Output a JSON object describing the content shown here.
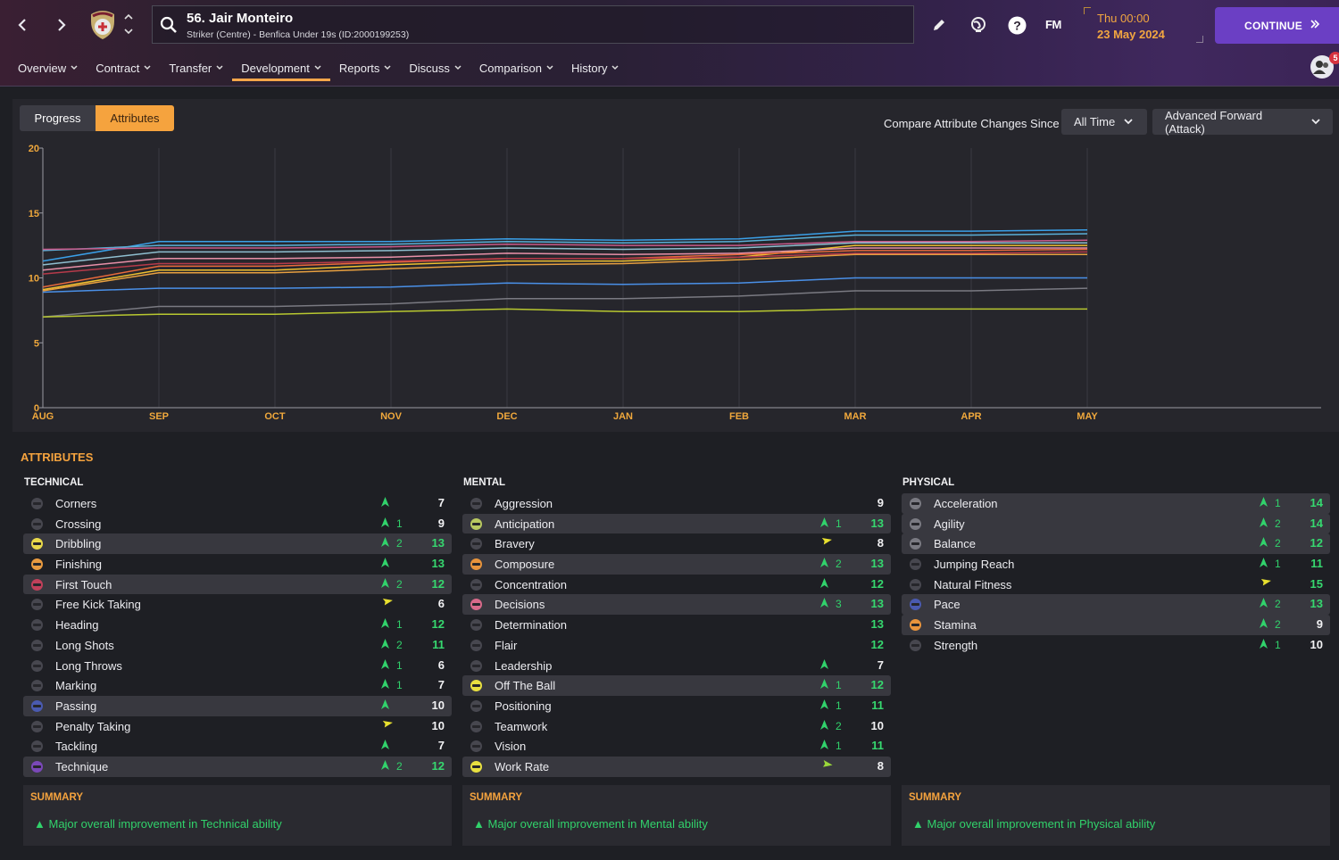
{
  "header": {
    "player_name": "56. Jair Monteiro",
    "player_subtitle": "Striker (Centre) - Benfica Under 19s (ID:2000199253)",
    "time": "Thu 00:00",
    "date": "23 May 2024",
    "continue_label": "CONTINUE",
    "fm_label": "FM",
    "notification_count": "5",
    "icons": [
      "back-icon",
      "forward-icon",
      "club-badge-icon",
      "search-icon",
      "edit-icon",
      "world-icon",
      "help-icon",
      "social-icon"
    ]
  },
  "menu": [
    {
      "label": "Overview"
    },
    {
      "label": "Contract"
    },
    {
      "label": "Transfer"
    },
    {
      "label": "Development",
      "active": true
    },
    {
      "label": "Reports"
    },
    {
      "label": "Discuss"
    },
    {
      "label": "Comparison"
    },
    {
      "label": "History"
    }
  ],
  "tabs": {
    "progress": "Progress",
    "attributes": "Attributes"
  },
  "compare": {
    "label": "Compare Attribute Changes Since",
    "since_value": "All Time",
    "role_value": "Advanced Forward (Attack)"
  },
  "chart_data": {
    "type": "line",
    "x": [
      "AUG",
      "SEP",
      "OCT",
      "NOV",
      "DEC",
      "JAN",
      "FEB",
      "MAR",
      "APR",
      "MAY"
    ],
    "y_ticks": [
      "20",
      "15",
      "10",
      "5",
      "0"
    ],
    "ylim": [
      0,
      20
    ],
    "grid": true,
    "series": [
      {
        "color": "#3aa0e8",
        "values": [
          11.3,
          12.8,
          12.8,
          12.8,
          13.0,
          12.9,
          13.0,
          13.6,
          13.6,
          13.7
        ]
      },
      {
        "color": "#5ab0d8",
        "values": [
          12.1,
          12.5,
          12.5,
          12.6,
          12.8,
          12.7,
          12.8,
          13.3,
          13.3,
          13.4
        ]
      },
      {
        "color": "#c85a8a",
        "values": [
          12.2,
          12.3,
          12.3,
          12.4,
          12.6,
          12.5,
          12.5,
          12.8,
          12.8,
          12.9
        ]
      },
      {
        "color": "#8fbfd0",
        "values": [
          11.0,
          12.0,
          12.0,
          12.1,
          12.3,
          12.2,
          12.3,
          12.7,
          12.7,
          12.7
        ]
      },
      {
        "color": "#f0c030",
        "values": [
          9.1,
          10.6,
          10.6,
          11.0,
          11.3,
          11.3,
          11.6,
          12.5,
          12.5,
          12.5
        ]
      },
      {
        "color": "#e890a8",
        "values": [
          10.6,
          11.5,
          11.5,
          11.6,
          11.9,
          11.8,
          11.9,
          12.3,
          12.3,
          12.3
        ]
      },
      {
        "color": "#e86a3c",
        "values": [
          9.3,
          10.9,
          10.9,
          11.2,
          11.5,
          11.5,
          11.8,
          12.1,
          12.1,
          12.2
        ]
      },
      {
        "color": "#b63a4a",
        "values": [
          10.3,
          11.1,
          11.1,
          11.3,
          11.5,
          11.5,
          11.6,
          11.9,
          11.9,
          12.0
        ]
      },
      {
        "color": "#e8a040",
        "values": [
          9.0,
          10.4,
          10.4,
          10.7,
          11.0,
          11.1,
          11.4,
          11.8,
          11.8,
          11.8
        ]
      },
      {
        "color": "#4a90e8",
        "values": [
          8.9,
          9.2,
          9.2,
          9.3,
          9.6,
          9.5,
          9.6,
          10.0,
          10.0,
          10.0
        ]
      },
      {
        "color": "#7a7a82",
        "values": [
          7.0,
          7.8,
          7.8,
          8.0,
          8.4,
          8.4,
          8.6,
          9.0,
          9.0,
          9.2
        ]
      },
      {
        "color": "#b8c830",
        "values": [
          7.0,
          7.2,
          7.2,
          7.4,
          7.6,
          7.4,
          7.4,
          7.6,
          7.6,
          7.6
        ]
      }
    ]
  },
  "attributes": {
    "title": "ATTRIBUTES",
    "technical": {
      "heading": "TECHNICAL",
      "rows": [
        {
          "name": "Corners",
          "arrow": "up",
          "change": "",
          "value": "7",
          "hl": false,
          "icon": "#47474f"
        },
        {
          "name": "Crossing",
          "arrow": "up",
          "change": "1",
          "value": "9",
          "hl": false,
          "icon": "#47474f"
        },
        {
          "name": "Dribbling",
          "arrow": "up",
          "change": "2",
          "value": "13",
          "hl": true,
          "green": true,
          "icon": "#e8d84a"
        },
        {
          "name": "Finishing",
          "arrow": "up",
          "change": "",
          "value": "13",
          "hl": false,
          "green": true,
          "icon": "#e89a40"
        },
        {
          "name": "First Touch",
          "arrow": "up",
          "change": "2",
          "value": "12",
          "hl": true,
          "green": true,
          "icon": "#c0405a"
        },
        {
          "name": "Free Kick Taking",
          "arrow": "flat",
          "change": "",
          "value": "6",
          "hl": false,
          "icon": "#47474f"
        },
        {
          "name": "Heading",
          "arrow": "up",
          "change": "1",
          "value": "12",
          "hl": false,
          "green": true,
          "icon": "#47474f"
        },
        {
          "name": "Long Shots",
          "arrow": "up",
          "change": "2",
          "value": "11",
          "hl": false,
          "green": true,
          "icon": "#47474f"
        },
        {
          "name": "Long Throws",
          "arrow": "up",
          "change": "1",
          "value": "6",
          "hl": false,
          "icon": "#47474f"
        },
        {
          "name": "Marking",
          "arrow": "up",
          "change": "1",
          "value": "7",
          "hl": false,
          "icon": "#47474f"
        },
        {
          "name": "Passing",
          "arrow": "up",
          "change": "",
          "value": "10",
          "hl": true,
          "icon": "#4a5ab0"
        },
        {
          "name": "Penalty Taking",
          "arrow": "flat",
          "change": "",
          "value": "10",
          "hl": false,
          "icon": "#47474f"
        },
        {
          "name": "Tackling",
          "arrow": "up",
          "change": "",
          "value": "7",
          "hl": false,
          "icon": "#47474f"
        },
        {
          "name": "Technique",
          "arrow": "up",
          "change": "2",
          "value": "12",
          "hl": true,
          "green": true,
          "icon": "#7a48b8"
        }
      ]
    },
    "mental": {
      "heading": "MENTAL",
      "rows": [
        {
          "name": "Aggression",
          "arrow": "",
          "change": "",
          "value": "9",
          "hl": false,
          "icon": "#47474f"
        },
        {
          "name": "Anticipation",
          "arrow": "up",
          "change": "1",
          "value": "13",
          "hl": true,
          "green": true,
          "icon": "#b8c860"
        },
        {
          "name": "Bravery",
          "arrow": "flat",
          "change": "",
          "value": "8",
          "hl": false,
          "icon": "#47474f"
        },
        {
          "name": "Composure",
          "arrow": "up",
          "change": "2",
          "value": "13",
          "hl": true,
          "green": true,
          "icon": "#e8943c"
        },
        {
          "name": "Concentration",
          "arrow": "up",
          "change": "",
          "value": "12",
          "hl": false,
          "green": true,
          "icon": "#47474f"
        },
        {
          "name": "Decisions",
          "arrow": "up",
          "change": "3",
          "value": "13",
          "hl": true,
          "green": true,
          "icon": "#d86a8a"
        },
        {
          "name": "Determination",
          "arrow": "",
          "change": "",
          "value": "13",
          "hl": false,
          "green": true,
          "icon": "#47474f"
        },
        {
          "name": "Flair",
          "arrow": "",
          "change": "",
          "value": "12",
          "hl": false,
          "green": true,
          "icon": "#47474f"
        },
        {
          "name": "Leadership",
          "arrow": "up",
          "change": "",
          "value": "7",
          "hl": false,
          "icon": "#47474f"
        },
        {
          "name": "Off The Ball",
          "arrow": "up",
          "change": "1",
          "value": "12",
          "hl": true,
          "green": true,
          "icon": "#e8e040"
        },
        {
          "name": "Positioning",
          "arrow": "up",
          "change": "1",
          "value": "11",
          "hl": false,
          "green": true,
          "icon": "#47474f"
        },
        {
          "name": "Teamwork",
          "arrow": "up",
          "change": "2",
          "value": "10",
          "hl": false,
          "icon": "#47474f"
        },
        {
          "name": "Vision",
          "arrow": "up",
          "change": "1",
          "value": "11",
          "hl": false,
          "green": true,
          "icon": "#47474f"
        },
        {
          "name": "Work Rate",
          "arrow": "flat2",
          "change": "",
          "value": "8",
          "hl": true,
          "icon": "#e8e040"
        }
      ]
    },
    "physical": {
      "heading": "PHYSICAL",
      "rows": [
        {
          "name": "Acceleration",
          "arrow": "up",
          "change": "1",
          "value": "14",
          "hl": true,
          "green": true,
          "icon": "#7a7a82"
        },
        {
          "name": "Agility",
          "arrow": "up",
          "change": "2",
          "value": "14",
          "hl": true,
          "green": true,
          "icon": "#7a7a82"
        },
        {
          "name": "Balance",
          "arrow": "up",
          "change": "2",
          "value": "12",
          "hl": true,
          "green": true,
          "icon": "#7a7a82"
        },
        {
          "name": "Jumping Reach",
          "arrow": "up",
          "change": "1",
          "value": "11",
          "hl": false,
          "green": true,
          "icon": "#47474f"
        },
        {
          "name": "Natural Fitness",
          "arrow": "flat",
          "change": "",
          "value": "15",
          "hl": false,
          "green": true,
          "icon": "#47474f"
        },
        {
          "name": "Pace",
          "arrow": "up",
          "change": "2",
          "value": "13",
          "hl": true,
          "green": true,
          "icon": "#4a5ab0"
        },
        {
          "name": "Stamina",
          "arrow": "up",
          "change": "2",
          "value": "9",
          "hl": true,
          "icon": "#e8943c"
        },
        {
          "name": "Strength",
          "arrow": "up",
          "change": "1",
          "value": "10",
          "hl": false,
          "icon": "#47474f"
        }
      ]
    }
  },
  "summaries": [
    {
      "title": "SUMMARY",
      "text": "Major overall improvement in Technical ability"
    },
    {
      "title": "SUMMARY",
      "text": "Major overall improvement in Mental ability"
    },
    {
      "title": "SUMMARY",
      "text": "Major overall improvement in Physical ability"
    }
  ]
}
